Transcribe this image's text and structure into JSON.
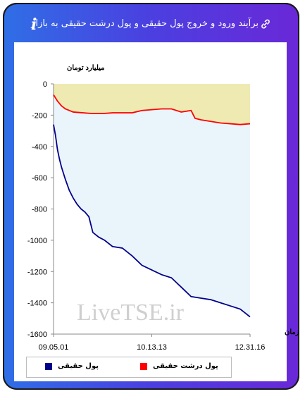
{
  "header": {
    "title": "برآیند ورود و خروج پول حقیقی و پول درشت حقیقی به بازار",
    "link_icon": "link-icon",
    "info_icon": "info-icon",
    "info_glyph": "i"
  },
  "colors": {
    "gradient_start": "#2f6fe6",
    "gradient_end": "#6a28d8",
    "series_real": "#00008b",
    "series_big": "#ff0000",
    "fill_real": "#eaf4fb",
    "fill_big": "#efeab2"
  },
  "chart_data": {
    "type": "area",
    "title": "",
    "ylabel": "میلیارد تومان",
    "xlabel": "زمان",
    "ylim": [
      -1600,
      0
    ],
    "yticks": [
      "0",
      "-200",
      "-400",
      "-600",
      "-800",
      "-1000",
      "-1200",
      "-1400",
      "-1600"
    ],
    "xticks": [
      "09.05.01",
      "10.13.13",
      "12.31.16"
    ],
    "watermark": "LiveTSE.ir",
    "grid": false,
    "legend_position": "bottom",
    "series": [
      {
        "name": "پول حقیقی",
        "color": "#00008b",
        "x": [
          0,
          1,
          2,
          3,
          4,
          5,
          6,
          8,
          10,
          12,
          14,
          16,
          18,
          20,
          23,
          26,
          30,
          35,
          40,
          45,
          50,
          55,
          60,
          65,
          70,
          75,
          80,
          85,
          90,
          95,
          100
        ],
        "values": [
          -260,
          -330,
          -420,
          -480,
          -530,
          -570,
          -610,
          -680,
          -730,
          -770,
          -800,
          -820,
          -850,
          -950,
          -980,
          -1000,
          -1040,
          -1050,
          -1100,
          -1160,
          -1190,
          -1220,
          -1240,
          -1300,
          -1360,
          -1370,
          -1380,
          -1400,
          -1420,
          -1440,
          -1490
        ]
      },
      {
        "name": "پول درشت حقیقی",
        "color": "#ff0000",
        "x": [
          0,
          2,
          4,
          6,
          8,
          10,
          15,
          20,
          25,
          30,
          35,
          40,
          45,
          50,
          55,
          60,
          65,
          70,
          72,
          75,
          80,
          85,
          90,
          95,
          100
        ],
        "values": [
          -70,
          -110,
          -140,
          -160,
          -170,
          -180,
          -185,
          -190,
          -190,
          -185,
          -185,
          -185,
          -170,
          -165,
          -160,
          -160,
          -180,
          -170,
          -220,
          -230,
          -240,
          -250,
          -255,
          -260,
          -255
        ]
      }
    ]
  }
}
